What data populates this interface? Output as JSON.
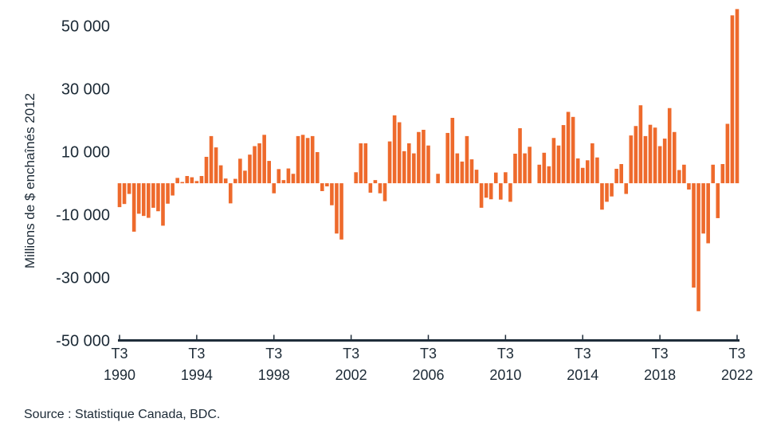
{
  "chart_data": {
    "type": "bar",
    "title": "",
    "xlabel": "",
    "ylabel": "Millions de $ enchaînés 2012",
    "ylim": [
      -50000,
      55500
    ],
    "grid": false,
    "bar_color": "#ee6a2c",
    "axis_color": "#1f2d3a",
    "y_ticks": [
      {
        "value": 50000,
        "label": "50 000"
      },
      {
        "value": 30000,
        "label": "30 000"
      },
      {
        "value": 10000,
        "label": "10 000"
      },
      {
        "value": -10000,
        "label": "-10 000"
      },
      {
        "value": -30000,
        "label": "-30 000"
      },
      {
        "value": -50000,
        "label": "-50 000"
      }
    ],
    "x_ticks": [
      {
        "category": "T3 1990",
        "quarter": "T3",
        "year": "1990"
      },
      {
        "category": "T3 1994",
        "quarter": "T3",
        "year": "1994"
      },
      {
        "category": "T3 1998",
        "quarter": "T3",
        "year": "1998"
      },
      {
        "category": "T3 2002",
        "quarter": "T3",
        "year": "2002"
      },
      {
        "category": "T3 2006",
        "quarter": "T3",
        "year": "2006"
      },
      {
        "category": "T3 2010",
        "quarter": "T3",
        "year": "2010"
      },
      {
        "category": "T3 2014",
        "quarter": "T3",
        "year": "2014"
      },
      {
        "category": "T3 2018",
        "quarter": "T3",
        "year": "2018"
      },
      {
        "category": "T3 2022",
        "quarter": "T3",
        "year": "2022"
      }
    ],
    "categories": [
      "T3 1990",
      "T4 1990",
      "T1 1991",
      "T2 1991",
      "T3 1991",
      "T4 1991",
      "T1 1992",
      "T2 1992",
      "T3 1992",
      "T4 1992",
      "T1 1993",
      "T2 1993",
      "T3 1993",
      "T4 1993",
      "T1 1994",
      "T2 1994",
      "T3 1994",
      "T4 1994",
      "T1 1995",
      "T2 1995",
      "T3 1995",
      "T4 1995",
      "T1 1996",
      "T2 1996",
      "T3 1996",
      "T4 1996",
      "T1 1997",
      "T2 1997",
      "T3 1997",
      "T4 1997",
      "T1 1998",
      "T2 1998",
      "T3 1998",
      "T4 1998",
      "T1 1999",
      "T2 1999",
      "T3 1999",
      "T4 1999",
      "T1 2000",
      "T2 2000",
      "T3 2000",
      "T4 2000",
      "T1 2001",
      "T2 2001",
      "T3 2001",
      "T4 2001",
      "T1 2002",
      "T2 2002",
      "T3 2002",
      "T4 2002",
      "T1 2003",
      "T2 2003",
      "T3 2003",
      "T4 2003",
      "T1 2004",
      "T2 2004",
      "T3 2004",
      "T4 2004",
      "T1 2005",
      "T2 2005",
      "T3 2005",
      "T4 2005",
      "T1 2006",
      "T2 2006",
      "T3 2006",
      "T4 2006",
      "T1 2007",
      "T2 2007",
      "T3 2007",
      "T4 2007",
      "T1 2008",
      "T2 2008",
      "T3 2008",
      "T4 2008",
      "T1 2009",
      "T2 2009",
      "T3 2009",
      "T4 2009",
      "T1 2010",
      "T2 2010",
      "T3 2010",
      "T4 2010",
      "T1 2011",
      "T2 2011",
      "T3 2011",
      "T4 2011",
      "T1 2012",
      "T2 2012",
      "T3 2012",
      "T4 2012",
      "T1 2013",
      "T2 2013",
      "T3 2013",
      "T4 2013",
      "T1 2014",
      "T2 2014",
      "T3 2014",
      "T4 2014",
      "T1 2015",
      "T2 2015",
      "T3 2015",
      "T4 2015",
      "T1 2016",
      "T2 2016",
      "T3 2016",
      "T4 2016",
      "T1 2017",
      "T2 2017",
      "T3 2017",
      "T4 2017",
      "T1 2018",
      "T2 2018",
      "T3 2018",
      "T4 2018",
      "T1 2019",
      "T2 2019",
      "T3 2019",
      "T4 2019",
      "T1 2020",
      "T2 2020",
      "T3 2020",
      "T4 2020",
      "T1 2021",
      "T2 2021",
      "T3 2021",
      "T4 2021",
      "T1 2022",
      "T2 2022",
      "T3 2022"
    ],
    "values": [
      -7600,
      -6600,
      -3400,
      -15400,
      -9700,
      -10400,
      -11000,
      -7800,
      -8900,
      -13500,
      -6500,
      -3900,
      1700,
      400,
      2300,
      1900,
      700,
      2300,
      8400,
      15000,
      11400,
      5700,
      1500,
      -6400,
      1400,
      7800,
      4000,
      9100,
      11800,
      12700,
      15400,
      7100,
      -3200,
      4500,
      1000,
      4700,
      3000,
      15000,
      15400,
      14400,
      15000,
      9900,
      -2500,
      -1000,
      -7000,
      -16000,
      -17900,
      0,
      0,
      3500,
      12700,
      12700,
      -3000,
      1000,
      -3200,
      -5700,
      13300,
      21600,
      19400,
      10200,
      12700,
      9500,
      16300,
      17000,
      12000,
      0,
      3000,
      0,
      16000,
      20800,
      9500,
      6900,
      15000,
      7600,
      4300,
      -7800,
      -4600,
      -5100,
      3400,
      -5200,
      3500,
      -5900,
      9400,
      17500,
      9500,
      11600,
      0,
      5900,
      9700,
      5400,
      14400,
      12000,
      18500,
      22700,
      21100,
      7900,
      4900,
      7300,
      12700,
      8200,
      -8400,
      -5900,
      -4200,
      4600,
      6100,
      -3400,
      15200,
      18200,
      24800,
      15000,
      18600,
      17700,
      11800,
      14200,
      23900,
      16300,
      4200,
      5900,
      -2000,
      -33200,
      -40700,
      -16000,
      -19100,
      5900,
      -11100,
      6100,
      18900,
      53400,
      55400
    ]
  },
  "footer": {
    "source": "Source : Statistique Canada, BDC."
  }
}
